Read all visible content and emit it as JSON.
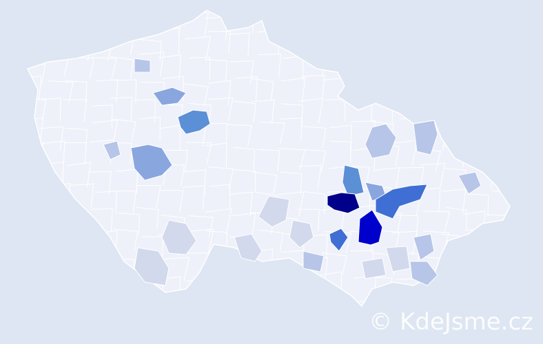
{
  "watermark": {
    "text": "© KdeJsme.cz"
  },
  "colors": {
    "background": "#dde6f2",
    "base": "#eef1f9",
    "border": "#ffffff",
    "levels": [
      "#dfe4ef",
      "#d3d9ec",
      "#b6c5e8",
      "#8aa6df",
      "#5b8fd6",
      "#3f6fd4",
      "#0000cc",
      "#00008b"
    ]
  },
  "regions_level": [
    3,
    4,
    3,
    2,
    2,
    2,
    2,
    1,
    1,
    1,
    1,
    2,
    2,
    4,
    3,
    5,
    7,
    6,
    5,
    2,
    2,
    1,
    1,
    1
  ]
}
